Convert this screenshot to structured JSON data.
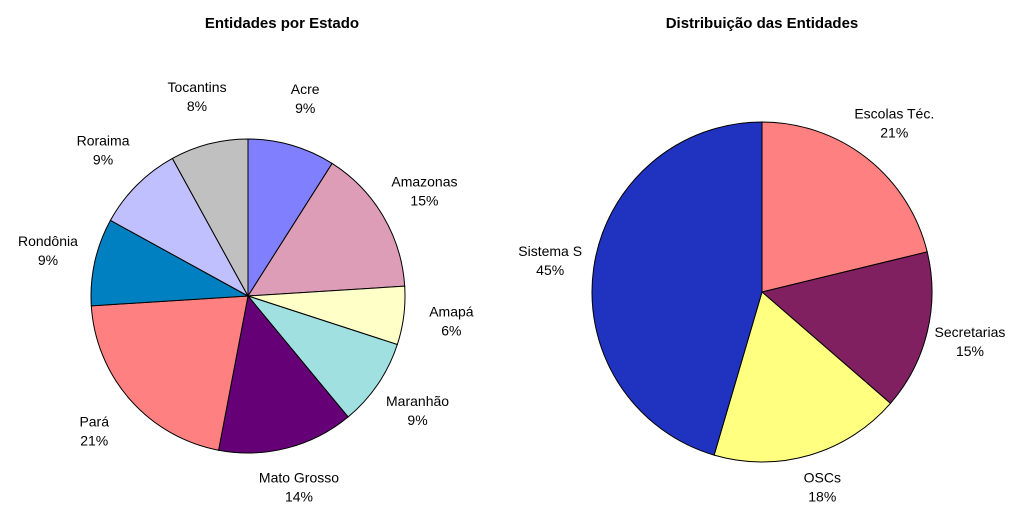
{
  "chart_data": [
    {
      "type": "pie",
      "title": "Entidades por Estado",
      "categories": [
        "Acre",
        "Amazonas",
        "Amapá",
        "Maranhão",
        "Mato Grosso",
        "Pará",
        "Rondônia",
        "Roraima",
        "Tocantins"
      ],
      "values": [
        9,
        15,
        6,
        9,
        14,
        21,
        9,
        9,
        8
      ],
      "value_labels": [
        "9%",
        "15%",
        "6%",
        "9%",
        "14%",
        "21%",
        "9%",
        "9%",
        "8%"
      ],
      "colors": [
        "#8080ff",
        "#dd9db6",
        "#ffffc8",
        "#a0e0e0",
        "#660077",
        "#ff8080",
        "#0080c0",
        "#c0c0ff",
        "#c0c0c0"
      ]
    },
    {
      "type": "pie",
      "title": "Distribuição das Entidades",
      "categories": [
        "Escolas Téc.",
        "Secretarias",
        "OSCs",
        "Sistema S"
      ],
      "values": [
        21,
        15,
        18,
        45
      ],
      "value_labels": [
        "21%",
        "15%",
        "18%",
        "45%"
      ],
      "colors": [
        "#ff8080",
        "#802060",
        "#ffff80",
        "#1f32c0"
      ]
    }
  ]
}
